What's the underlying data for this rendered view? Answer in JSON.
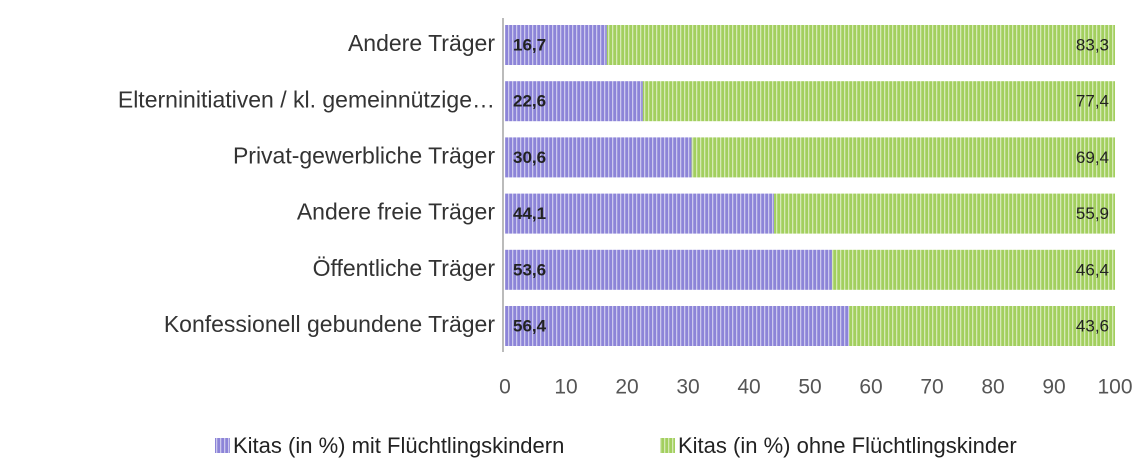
{
  "chart_data": {
    "type": "stacked_bar_horizontal",
    "categories": [
      "Andere Träger",
      "Elterninitiativen / kl. gemeinnützige…",
      "Privat-gewerbliche Träger",
      "Andere freie Träger",
      "Öffentliche Träger",
      "Konfessionell gebundene Träger"
    ],
    "series": [
      {
        "name": "Kitas (in %) mit Flüchtlingskindern",
        "color": "#8c84d8",
        "values": [
          16.7,
          22.6,
          30.6,
          44.1,
          53.6,
          56.4
        ],
        "value_labels": [
          "16,7",
          "22,6",
          "30,6",
          "44,1",
          "53,6",
          "56,4"
        ]
      },
      {
        "name": "Kitas (in %) ohne Flüchtlingskinder",
        "color": "#a2cf5e",
        "values": [
          83.3,
          77.4,
          69.4,
          55.9,
          46.4,
          43.6
        ],
        "value_labels": [
          "83,3",
          "77,4",
          "69,4",
          "55,9",
          "46,4",
          "43,6"
        ]
      }
    ],
    "xlim": [
      0,
      100
    ],
    "xticks": [
      0,
      10,
      20,
      30,
      40,
      50,
      60,
      70,
      80,
      90,
      100
    ],
    "legend": "bottom",
    "grid": false
  }
}
